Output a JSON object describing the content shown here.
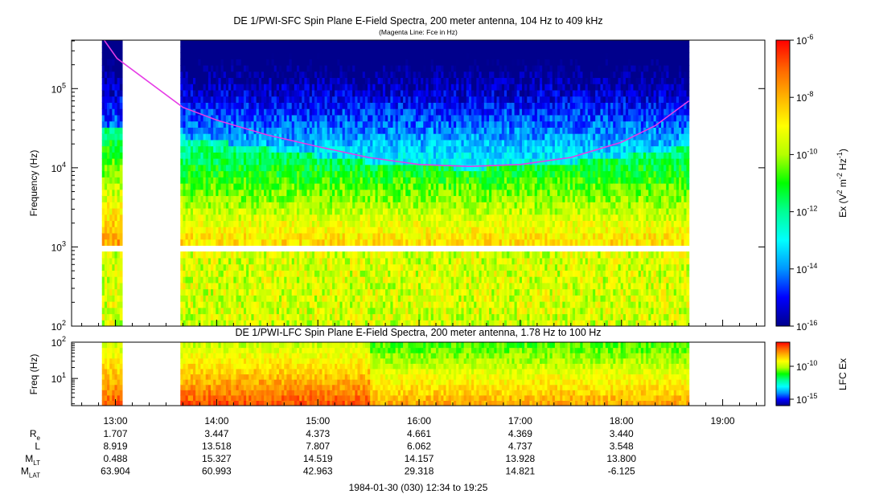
{
  "chart_data": [
    {
      "type": "heatmap",
      "title": "DE 1/PWI-SFC  Spin Plane E-Field Spectra, 200 meter antenna, 104 Hz to 409 kHz",
      "subtitle": "(Magenta Line: Fce in Hz)",
      "xlabel": "",
      "ylabel": "Frequency (Hz)",
      "y_scale": "log",
      "ylim": [
        100,
        409000
      ],
      "y_ticks": [
        {
          "value": 100,
          "base": "10",
          "exp": "2"
        },
        {
          "value": 1000,
          "base": "10",
          "exp": "3"
        },
        {
          "value": 10000,
          "base": "10",
          "exp": "4"
        },
        {
          "value": 100000,
          "base": "10",
          "exp": "5"
        }
      ],
      "xlim": [
        "12:34",
        "19:25"
      ],
      "colorbar": {
        "label_parts": [
          "Ex (V",
          "2",
          " m",
          "-2",
          " Hz",
          "-1",
          ")"
        ],
        "scale": "log",
        "range": [
          1e-16,
          1e-06
        ],
        "ticks": [
          {
            "base": "10",
            "exp": "-6"
          },
          {
            "base": "10",
            "exp": "-8"
          },
          {
            "base": "10",
            "exp": "-10"
          },
          {
            "base": "10",
            "exp": "-12"
          },
          {
            "base": "10",
            "exp": "-14"
          },
          {
            "base": "10",
            "exp": "-16"
          }
        ]
      },
      "data_gaps": [
        [
          "12:34",
          "12:51"
        ],
        [
          "13:03",
          "13:38"
        ]
      ],
      "frequency_gap_hz": [
        900,
        1000
      ],
      "fce_line": {
        "color": "#e63ce6",
        "t": [
          "12:51",
          "13:01",
          "13:40",
          "14:00",
          "14:30",
          "15:00",
          "15:30",
          "16:00",
          "16:30",
          "17:00",
          "17:30",
          "18:00",
          "18:20",
          "18:40"
        ],
        "hz": [
          480000,
          240000,
          58000,
          40000,
          26000,
          18500,
          13500,
          11000,
          10400,
          11000,
          13500,
          21000,
          34000,
          70000
        ]
      },
      "fce_line_label": "Fce"
    },
    {
      "type": "heatmap",
      "title": "DE 1/PWI-LFC  Spin Plane E-Field Spectra, 200 meter antenna, 1.78 Hz to 100 Hz",
      "ylabel": "Freq (Hz)",
      "y_scale": "log",
      "ylim": [
        1.78,
        100
      ],
      "y_ticks": [
        {
          "value": 10,
          "base": "10",
          "exp": "1"
        },
        {
          "value": 100,
          "base": "10",
          "exp": "2"
        }
      ],
      "colorbar": {
        "label": "LFC Ex",
        "scale": "log",
        "ticks": [
          {
            "base": "10",
            "exp": "-10"
          },
          {
            "base": "10",
            "exp": "-15"
          }
        ]
      }
    }
  ],
  "time_axis": {
    "ticks": [
      "13:00",
      "14:00",
      "15:00",
      "16:00",
      "17:00",
      "18:00",
      "19:00"
    ],
    "date_label": "1984-01-30 (030) 12:34 to 19:25"
  },
  "ephemeris": {
    "rows": [
      {
        "label": "R",
        "sub": "e",
        "values": [
          "1.707",
          "3.447",
          "4.373",
          "4.661",
          "4.369",
          "3.440"
        ]
      },
      {
        "label": "L",
        "sub": "",
        "values": [
          "8.919",
          "13.518",
          "7.807",
          "6.062",
          "4.737",
          "3.548"
        ]
      },
      {
        "label": "M",
        "sub": "LT",
        "values": [
          "0.488",
          "15.327",
          "14.519",
          "14.157",
          "13.928",
          "13.800"
        ]
      },
      {
        "label": "M",
        "sub": "LAT",
        "values": [
          "63.904",
          "60.993",
          "42.963",
          "29.318",
          "14.821",
          "-6.125"
        ]
      }
    ]
  },
  "colors": {
    "colormap": [
      "#00008c",
      "#0000ff",
      "#0096ff",
      "#00ffff",
      "#00ff96",
      "#00ff00",
      "#b4ff00",
      "#ffff00",
      "#ffb400",
      "#ff6400",
      "#ff0000"
    ],
    "fce_line": "#e63ce6"
  }
}
